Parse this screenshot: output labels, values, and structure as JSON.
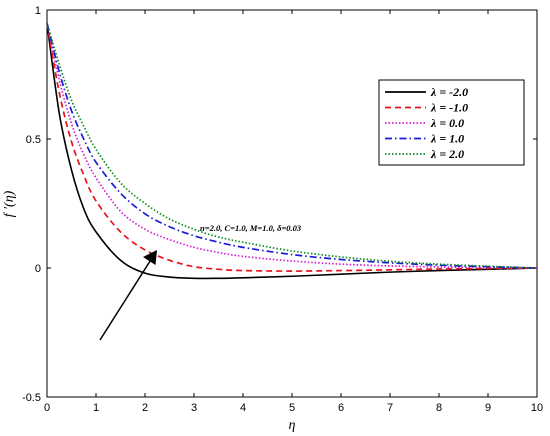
{
  "chart_data": {
    "type": "line",
    "xlabel": "η",
    "ylabel": "f '(η)",
    "xlim": [
      0,
      10
    ],
    "ylim": [
      -0.5,
      1
    ],
    "xticks": [
      "0",
      "1",
      "2",
      "3",
      "4",
      "5",
      "6",
      "7",
      "8",
      "9",
      "10"
    ],
    "yticks": [
      "-0.5",
      "0",
      "0.5",
      "1"
    ],
    "grid": false,
    "legend_position": "top-right",
    "annotation": "n=2.0, C=1.0, M=1.0, δ=0.03",
    "x": [
      0,
      0.25,
      0.5,
      0.75,
      1,
      1.5,
      2,
      2.5,
      3,
      3.5,
      4,
      5,
      6,
      7,
      8,
      9,
      10
    ],
    "series": [
      {
        "name": "λ = -2.0",
        "color": "#000000",
        "style": "solid",
        "values": [
          0.95,
          0.6,
          0.38,
          0.23,
          0.14,
          0.03,
          -0.02,
          -0.035,
          -0.04,
          -0.04,
          -0.038,
          -0.032,
          -0.024,
          -0.016,
          -0.01,
          -0.005,
          0.0
        ]
      },
      {
        "name": "λ = -1.0",
        "color": "#e8141a",
        "style": "dashed",
        "values": [
          0.95,
          0.68,
          0.49,
          0.36,
          0.26,
          0.14,
          0.07,
          0.03,
          0.005,
          -0.005,
          -0.01,
          -0.012,
          -0.01,
          -0.007,
          -0.004,
          -0.002,
          0.0
        ]
      },
      {
        "name": "λ = 0.0",
        "color": "#d61cd6",
        "style": "dotted",
        "values": [
          0.95,
          0.73,
          0.56,
          0.44,
          0.35,
          0.22,
          0.15,
          0.11,
          0.08,
          0.06,
          0.045,
          0.027,
          0.015,
          0.008,
          0.004,
          0.002,
          0.0
        ]
      },
      {
        "name": "λ = 1.0",
        "color": "#1a1ad6",
        "style": "dashdot",
        "values": [
          0.95,
          0.76,
          0.61,
          0.5,
          0.41,
          0.29,
          0.21,
          0.16,
          0.125,
          0.1,
          0.08,
          0.052,
          0.033,
          0.02,
          0.011,
          0.005,
          0.0
        ]
      },
      {
        "name": "λ = 2.0",
        "color": "#0e8a1e",
        "style": "dotted",
        "values": [
          0.95,
          0.79,
          0.65,
          0.55,
          0.46,
          0.33,
          0.25,
          0.19,
          0.15,
          0.12,
          0.1,
          0.066,
          0.043,
          0.026,
          0.015,
          0.007,
          0.0
        ]
      }
    ]
  }
}
